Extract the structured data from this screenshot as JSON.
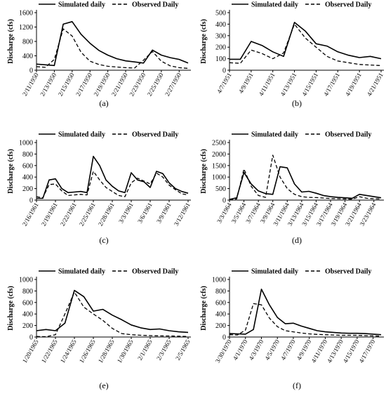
{
  "chart_data": [
    {
      "panel": "(a)",
      "type": "line",
      "ylabel": "Discharge (cfs)",
      "ylim": [
        0,
        1600
      ],
      "yticks": [
        0,
        400,
        800,
        1200,
        1600
      ],
      "x": [
        "2/11/1950",
        "2/12/1950",
        "2/13/1950",
        "2/14/1950",
        "2/15/1950",
        "2/16/1950",
        "2/17/1950",
        "2/18/1950",
        "2/19/1950",
        "2/20/1950",
        "2/21/1950",
        "2/22/1950",
        "2/23/1950",
        "2/24/1950",
        "2/25/1950",
        "2/26/1950",
        "2/27/1950",
        "2/28/1950"
      ],
      "xticks": [
        "2/11/1950",
        "2/13/1950",
        "2/15/1950",
        "2/17/1950",
        "2/19/1950",
        "2/21/1950",
        "2/23/1950",
        "2/25/1950",
        "2/27/1950"
      ],
      "series": [
        {
          "name": "Simulated daily",
          "style": "solid",
          "values": [
            170,
            150,
            130,
            1280,
            1350,
            1000,
            750,
            550,
            420,
            320,
            260,
            230,
            200,
            560,
            420,
            350,
            300,
            200
          ]
        },
        {
          "name": "Observed Daily",
          "style": "dashed",
          "values": [
            100,
            80,
            300,
            1150,
            950,
            500,
            250,
            160,
            110,
            90,
            70,
            60,
            280,
            520,
            250,
            120,
            70,
            50
          ]
        }
      ]
    },
    {
      "panel": "(b)",
      "type": "line",
      "ylabel": "Discharge (cfs)",
      "ylim": [
        0,
        500
      ],
      "yticks": [
        0,
        100,
        200,
        300,
        400,
        500
      ],
      "x": [
        "4/7/1951",
        "4/8/1951",
        "4/9/1951",
        "4/10/1951",
        "4/11/1951",
        "4/12/1951",
        "4/13/1951",
        "4/14/1951",
        "4/15/1951",
        "4/16/1951",
        "4/17/1951",
        "4/18/1951",
        "4/19/1951",
        "4/20/1951",
        "4/21/1951"
      ],
      "xticks": [
        "4/7/1951",
        "4/9/1951",
        "4/11/1951",
        "4/13/1951",
        "4/15/1951",
        "4/17/1951",
        "4/19/1951",
        "4/21/1951"
      ],
      "series": [
        {
          "name": "Simulated daily",
          "style": "solid",
          "values": [
            95,
            95,
            250,
            215,
            160,
            120,
            415,
            340,
            230,
            210,
            160,
            130,
            110,
            120,
            100
          ]
        },
        {
          "name": "Observed Daily",
          "style": "dashed",
          "values": [
            65,
            60,
            175,
            145,
            100,
            150,
            400,
            280,
            200,
            120,
            80,
            65,
            50,
            45,
            40
          ]
        }
      ]
    },
    {
      "panel": "(c)",
      "type": "line",
      "ylabel": "Discharge (cfs)",
      "ylim": [
        0,
        1000
      ],
      "yticks": [
        0,
        200,
        400,
        600,
        800,
        1000
      ],
      "x": [
        "2/16/1961",
        "2/17/1961",
        "2/18/1961",
        "2/19/1961",
        "2/20/1961",
        "2/21/1961",
        "2/22/1961",
        "2/23/1961",
        "2/24/1961",
        "2/25/1961",
        "2/26/1961",
        "2/27/1961",
        "2/28/1961",
        "3/1/1961",
        "3/2/1961",
        "3/3/1961",
        "3/4/1961",
        "3/5/1961",
        "3/6/1961",
        "3/7/1961",
        "3/8/1961",
        "3/9/1961",
        "3/10/1961",
        "3/11/1961",
        "3/12/1961"
      ],
      "xticks": [
        "2/16/1961",
        "2/19/1961",
        "2/22/1961",
        "2/25/1961",
        "2/28/1961",
        "3/3/1961",
        "3/6/1961",
        "3/9/1961",
        "3/12/1961"
      ],
      "series": [
        {
          "name": "Simulated daily",
          "style": "solid",
          "values": [
            30,
            30,
            350,
            370,
            200,
            130,
            140,
            150,
            130,
            760,
            600,
            350,
            240,
            160,
            130,
            475,
            350,
            320,
            220,
            500,
            460,
            300,
            200,
            150,
            120
          ]
        },
        {
          "name": "Observed Daily",
          "style": "dashed",
          "values": [
            60,
            40,
            270,
            280,
            160,
            80,
            90,
            100,
            90,
            500,
            350,
            220,
            150,
            80,
            60,
            300,
            380,
            330,
            280,
            470,
            400,
            260,
            180,
            110,
            90
          ]
        }
      ]
    },
    {
      "panel": "(d)",
      "type": "line",
      "ylabel": "Discharge (cfs)",
      "ylim": [
        0,
        2500
      ],
      "yticks": [
        0,
        500,
        1000,
        1500,
        2000,
        2500
      ],
      "x": [
        "3/3/1964",
        "3/4/1964",
        "3/5/1964",
        "3/6/1964",
        "3/7/1964",
        "3/8/1964",
        "3/9/1964",
        "3/10/1964",
        "3/11/1964",
        "3/12/1964",
        "3/13/1964",
        "3/14/1964",
        "3/15/1964",
        "3/16/1964",
        "3/17/1964",
        "3/18/1964",
        "3/19/1964",
        "3/20/1964",
        "3/21/1964",
        "3/22/1964",
        "3/23/1964",
        "3/24/1964"
      ],
      "xticks": [
        "3/3/1964",
        "3/5/1964",
        "3/7/1964",
        "3/9/1964",
        "3/11/1964",
        "3/13/1964",
        "3/15/1964",
        "3/17/1964",
        "3/19/1964",
        "3/21/1964",
        "3/23/1964"
      ],
      "series": [
        {
          "name": "Simulated daily",
          "style": "solid",
          "values": [
            30,
            100,
            1200,
            700,
            400,
            280,
            250,
            1450,
            1400,
            700,
            350,
            380,
            300,
            200,
            150,
            120,
            100,
            80,
            250,
            200,
            150,
            100
          ]
        },
        {
          "name": "Observed Daily",
          "style": "dashed",
          "values": [
            10,
            50,
            1350,
            600,
            200,
            120,
            1950,
            1000,
            500,
            250,
            150,
            120,
            110,
            90,
            70,
            60,
            50,
            40,
            150,
            80,
            60,
            50
          ]
        }
      ]
    },
    {
      "panel": "(e)",
      "type": "line",
      "ylabel": "Discharge (cfs)",
      "ylim": [
        0,
        1000
      ],
      "yticks": [
        0,
        200,
        400,
        600,
        800,
        1000
      ],
      "x": [
        "1/20/1965",
        "1/21/1965",
        "1/22/1965",
        "1/23/1965",
        "1/24/1965",
        "1/25/1965",
        "1/26/1965",
        "1/27/1965",
        "1/28/1965",
        "1/29/1965",
        "1/30/1965",
        "1/31/1965",
        "2/1/1965",
        "2/2/1965",
        "2/3/1965",
        "2/4/1965",
        "2/5/1965"
      ],
      "xticks": [
        "1/20/1965",
        "1/22/1965",
        "1/24/1965",
        "1/26/1965",
        "1/28/1965",
        "1/30/1965",
        "2/1/1965",
        "2/3/1965",
        "2/5/1965"
      ],
      "series": [
        {
          "name": "Simulated daily",
          "style": "solid",
          "values": [
            110,
            130,
            110,
            240,
            810,
            700,
            450,
            480,
            380,
            300,
            210,
            160,
            130,
            140,
            110,
            90,
            80
          ]
        },
        {
          "name": "Observed Daily",
          "style": "dashed",
          "values": [
            10,
            5,
            40,
            400,
            780,
            520,
            400,
            290,
            150,
            60,
            40,
            30,
            25,
            20,
            18,
            15,
            10
          ]
        }
      ]
    },
    {
      "panel": "(f)",
      "type": "line",
      "ylabel": "Discharge (cfs)",
      "ylim": [
        0,
        1000
      ],
      "yticks": [
        0,
        200,
        400,
        600,
        800,
        1000
      ],
      "x": [
        "3/30/1970",
        "3/31/1970",
        "4/1/1970",
        "4/2/1970",
        "4/3/1970",
        "4/4/1970",
        "4/5/1970",
        "4/6/1970",
        "4/7/1970",
        "4/8/1970",
        "4/9/1970",
        "4/10/1970",
        "4/11/1970",
        "4/12/1970",
        "4/13/1970",
        "4/14/1970",
        "4/15/1970",
        "4/16/1970",
        "4/17/1970",
        "4/18/1970"
      ],
      "xticks": [
        "3/30/1970",
        "4/1/1970",
        "4/3/1970",
        "4/5/1970",
        "4/7/1970",
        "4/9/1970",
        "4/11/1970",
        "4/13/1970",
        "4/15/1970",
        "4/17/1970"
      ],
      "series": [
        {
          "name": "Simulated daily",
          "style": "solid",
          "values": [
            60,
            55,
            50,
            130,
            830,
            560,
            340,
            230,
            240,
            190,
            150,
            110,
            90,
            80,
            70,
            65,
            65,
            60,
            50,
            40
          ]
        },
        {
          "name": "Observed Daily",
          "style": "dashed",
          "values": [
            40,
            35,
            120,
            580,
            560,
            330,
            180,
            110,
            90,
            70,
            55,
            45,
            40,
            35,
            30,
            30,
            30,
            25,
            20,
            15
          ]
        }
      ]
    }
  ]
}
